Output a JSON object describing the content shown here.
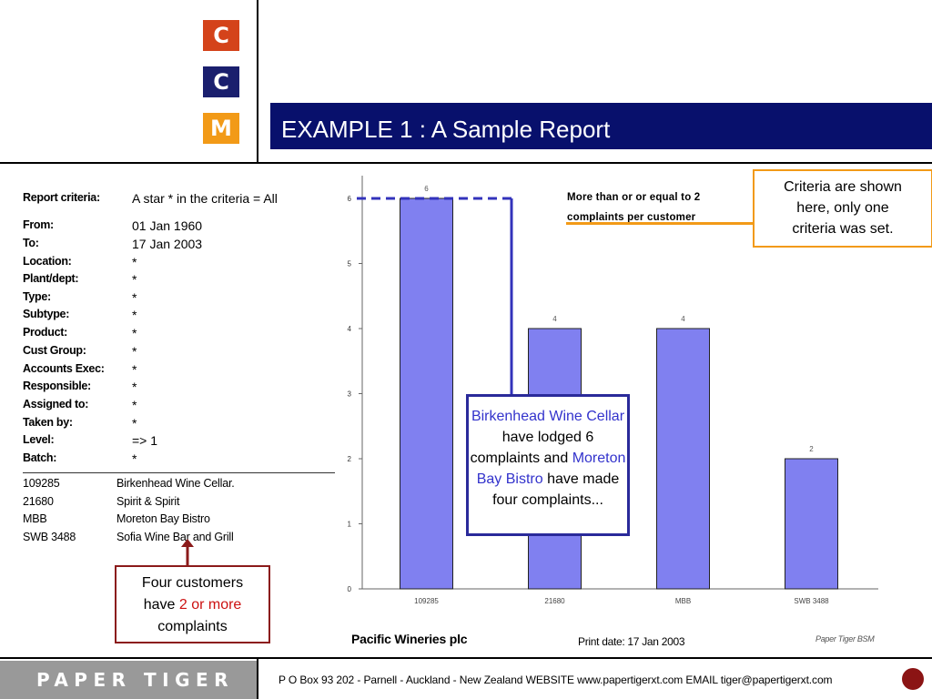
{
  "header": {
    "logo_letters": [
      "C",
      "C",
      "M"
    ],
    "logo_colors": [
      "#d4431a",
      "#1a1f6e",
      "#f29a17"
    ],
    "title": "EXAMPLE 1 : A Sample Report",
    "title_bar_color": "#08106c"
  },
  "criteria": {
    "rows": [
      {
        "label": "Report criteria:",
        "value": "A star * in the criteria = All"
      },
      {
        "label": "From:",
        "value": "01 Jan 1960"
      },
      {
        "label": "To:",
        "value": "17 Jan 2003"
      },
      {
        "label": "Location:",
        "value": "*"
      },
      {
        "label": "Plant/dept:",
        "value": "*"
      },
      {
        "label": "Type:",
        "value": "*"
      },
      {
        "label": "Subtype:",
        "value": "*"
      },
      {
        "label": "Product:",
        "value": "*"
      },
      {
        "label": "Cust Group:",
        "value": "*"
      },
      {
        "label": "Accounts Exec:",
        "value": "*"
      },
      {
        "label": "Responsible:",
        "value": "*"
      },
      {
        "label": "Assigned to:",
        "value": "*"
      },
      {
        "label": "Taken by:",
        "value": "*"
      },
      {
        "label": "Level:",
        "value": "=>  1"
      },
      {
        "label": "Batch:",
        "value": "*"
      }
    ]
  },
  "customers": [
    {
      "code": "109285",
      "name": "Birkenhead Wine Cellar."
    },
    {
      "code": "21680",
      "name": "Spirit & Spirit"
    },
    {
      "code": "MBB",
      "name": "Moreton Bay Bistro"
    },
    {
      "code": "SWB 3488",
      "name": "Sofia Wine Bar and Grill"
    }
  ],
  "chart_data": {
    "type": "bar",
    "categories": [
      "109285",
      "21680",
      "MBB",
      "SWB 3488"
    ],
    "values": [
      6,
      4,
      4,
      2
    ],
    "data_labels": [
      "6",
      "4",
      "4",
      "2"
    ],
    "ylim": [
      0,
      6
    ],
    "yticks": [
      "0",
      "1",
      "2",
      "3",
      "4",
      "5",
      "6"
    ],
    "bar_color": "#8080f0",
    "threshold_line": 6,
    "criteria_text_line1": "More than or or equal to   2",
    "criteria_text_line2": "complaints per customer"
  },
  "chart_footer": {
    "company": "Pacific Wineries plc",
    "print_date": "Print date: 17 Jan 2003",
    "source": "Paper Tiger BSM"
  },
  "notes": {
    "criteria_note": [
      "Criteria are shown",
      "here, only one",
      "criteria was set."
    ],
    "birk_note": {
      "name1": "Birkenhead Wine Cellar",
      "text1": "have lodged 6 complaints and",
      "name2": "Moreton Bay Bistro",
      "text2": "have made four complaints..."
    },
    "four_note": {
      "line1": "Four customers",
      "prefix": "have",
      "highlight": "2 or more",
      "line3": "complaints"
    }
  },
  "footer": {
    "brand": "PAPER TIGER",
    "contact": "P O Box 93 202 - Parnell - Auckland - New Zealand   WEBSITE  www.papertigerxt.com   EMAIL  tiger@papertigerxt.com"
  }
}
